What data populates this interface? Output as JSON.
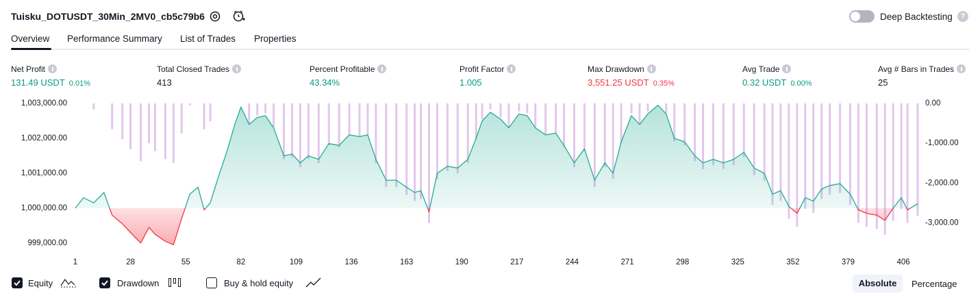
{
  "header": {
    "title": "Tuisku_DOTUSDT_30Min_2MV0_cb5c79b6",
    "toggle_label": "Deep Backtesting",
    "help": "?"
  },
  "tabs": [
    "Overview",
    "Performance Summary",
    "List of Trades",
    "Properties"
  ],
  "metrics": [
    {
      "label": "Net Profit",
      "value": "131.49 USDT",
      "sub": "0.01%",
      "color": "#089981"
    },
    {
      "label": "Total Closed Trades",
      "value": "413",
      "color": "#131722"
    },
    {
      "label": "Percent Profitable",
      "value": "43.34%",
      "color": "#089981"
    },
    {
      "label": "Profit Factor",
      "value": "1.005",
      "color": "#089981"
    },
    {
      "label": "Max Drawdown",
      "value": "3,551.25 USDT",
      "sub": "0.35%",
      "color": "#f23645"
    },
    {
      "label": "Avg Trade",
      "value": "0.32 USDT",
      "sub": "0.00%",
      "color": "#089981"
    },
    {
      "label": "Avg # Bars in Trades",
      "value": "25",
      "color": "#131722"
    }
  ],
  "chart_data": {
    "type": "line",
    "grid": false,
    "x": [
      1,
      5,
      10,
      15,
      19,
      24,
      28,
      33,
      37,
      40,
      45,
      49,
      53,
      57,
      61,
      64,
      67,
      71,
      75,
      79,
      82,
      86,
      90,
      94,
      98,
      103,
      107,
      111,
      115,
      120,
      125,
      130,
      135,
      140,
      144,
      148,
      153,
      158,
      163,
      167,
      170,
      174,
      178,
      183,
      188,
      193,
      197,
      200,
      204,
      209,
      213,
      218,
      222,
      226,
      231,
      236,
      240,
      245,
      250,
      255,
      260,
      264,
      268,
      273,
      277,
      281,
      286,
      290,
      294,
      299,
      304,
      308,
      313,
      318,
      323,
      328,
      333,
      338,
      342,
      346,
      350,
      354,
      358,
      362,
      366,
      370,
      375,
      380,
      384,
      388,
      393,
      397,
      401,
      405,
      408,
      413
    ],
    "xlim": [
      1,
      413
    ],
    "xticks": [
      1,
      28,
      55,
      82,
      109,
      136,
      163,
      190,
      217,
      244,
      271,
      298,
      325,
      352,
      379,
      406
    ],
    "ylim": [
      998800,
      1003100
    ],
    "yticks": [
      {
        "value": 1003000,
        "label": "1,003,000.00"
      },
      {
        "value": 1002000,
        "label": "1,002,000.00"
      },
      {
        "value": 1001000,
        "label": "1,001,000.00"
      },
      {
        "value": 1000000,
        "label": "1,000,000.00"
      },
      {
        "value": 999000,
        "label": "999,000.00"
      }
    ],
    "y2lim": [
      -3680,
      85
    ],
    "y2ticks": [
      {
        "value": 0,
        "label": "0.00"
      },
      {
        "value": -1000,
        "label": "-1,000.00"
      },
      {
        "value": -2000,
        "label": "-2,000.00"
      },
      {
        "value": -3000,
        "label": "-3,000.00"
      }
    ],
    "series": [
      {
        "name": "Equity",
        "type": "area",
        "color": "#22ab94",
        "negative_color": "#f23645",
        "values": [
          1000000,
          1000300,
          1000150,
          1000450,
          999800,
          999550,
          999300,
          999000,
          999450,
          999250,
          999050,
          998950,
          999700,
          1000400,
          1000600,
          999950,
          1000150,
          1000900,
          1001600,
          1002400,
          1002900,
          1002400,
          1002600,
          1002650,
          1002300,
          1001500,
          1001550,
          1001300,
          1001500,
          1001400,
          1001850,
          1001800,
          1002100,
          1002050,
          1002100,
          1001400,
          1000800,
          1000800,
          1000600,
          1000450,
          1000500,
          999900,
          1001000,
          1001200,
          1001150,
          1001400,
          1002000,
          1002500,
          1002750,
          1002550,
          1002300,
          1002700,
          1002650,
          1002300,
          1002100,
          1002150,
          1001800,
          1001300,
          1001700,
          1000800,
          1001300,
          1001000,
          1001900,
          1002650,
          1002400,
          1002700,
          1002950,
          1002700,
          1002000,
          1001900,
          1001500,
          1001300,
          1001400,
          1001300,
          1001400,
          1001600,
          1001150,
          1001000,
          1000400,
          1000500,
          1000050,
          999850,
          1000300,
          1000200,
          1000550,
          1000650,
          1000700,
          1000400,
          999950,
          999850,
          999800,
          999650,
          1000000,
          1000300,
          999950,
          1000130
        ]
      },
      {
        "name": "Drawdown",
        "type": "bar",
        "axis": "y2",
        "color": "#d9b3e6",
        "values": [
          0,
          0,
          -150,
          0,
          -650,
          -900,
          -1150,
          -1450,
          -1000,
          -1200,
          -1400,
          -1500,
          -750,
          -50,
          0,
          -650,
          -450,
          0,
          0,
          0,
          0,
          -500,
          -300,
          -250,
          -600,
          -1400,
          -1350,
          -1600,
          -1400,
          -1500,
          -1050,
          -1100,
          -800,
          -850,
          -800,
          -1500,
          -2100,
          -2100,
          -2300,
          -2450,
          -2400,
          -3000,
          -1900,
          -1700,
          -1750,
          -1500,
          -900,
          -400,
          -150,
          -350,
          -600,
          -200,
          -250,
          -600,
          -800,
          -750,
          -1100,
          -1600,
          -1200,
          -2100,
          -1600,
          -1900,
          -1000,
          -250,
          -500,
          -200,
          0,
          -250,
          -950,
          -1050,
          -1450,
          -1650,
          -1550,
          -1650,
          -1550,
          -1350,
          -1800,
          -1950,
          -2550,
          -2450,
          -2900,
          -3100,
          -2650,
          -2750,
          -2400,
          -2300,
          -2250,
          -2550,
          -3000,
          -3100,
          -3150,
          -3300,
          -2950,
          -2650,
          -3000,
          -2820
        ]
      }
    ]
  },
  "legend_extra": "Buy & hold equity",
  "scale_buttons": [
    "Absolute",
    "Percentage"
  ]
}
